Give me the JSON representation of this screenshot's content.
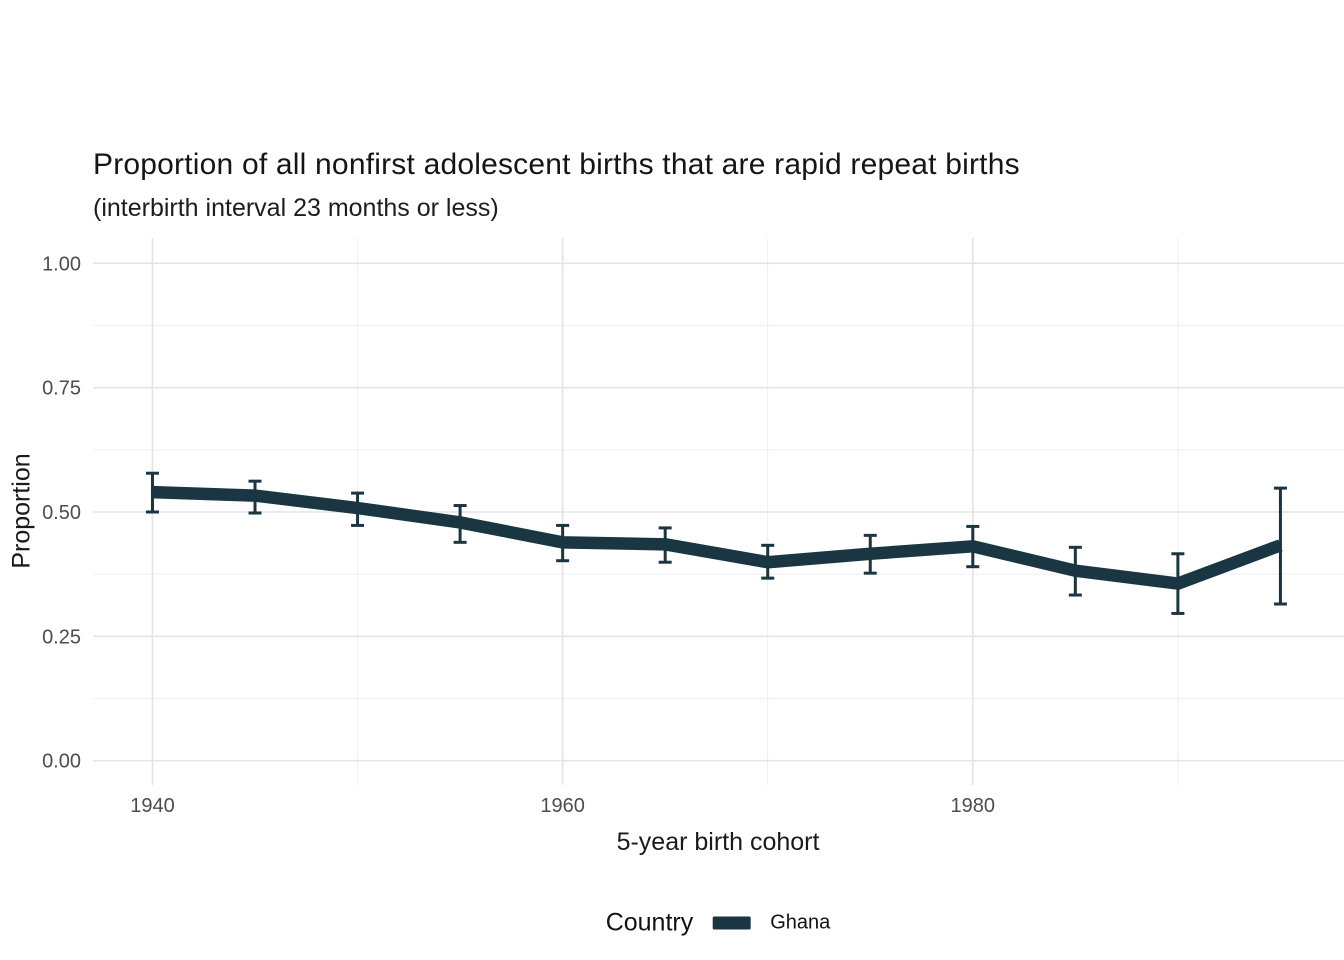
{
  "chart_data": {
    "type": "line",
    "title": "Proportion of all nonfirst adolescent births that are rapid repeat births",
    "subtitle": "(interbirth interval 23 months or less)",
    "xlabel": "5-year birth cohort",
    "ylabel": "Proportion",
    "grid": true,
    "legend": {
      "title": "Country",
      "position": "bottom",
      "items": [
        "Ghana"
      ]
    },
    "x_axis": {
      "ticks": [
        1940,
        1960,
        1980
      ],
      "tick_labels": [
        "1940",
        "1960",
        "1980"
      ],
      "minor_ticks": [
        1950,
        1970,
        1990
      ],
      "range": [
        1937.1,
        1998.1
      ]
    },
    "y_axis": {
      "ticks": [
        0,
        0.25,
        0.5,
        0.75,
        1
      ],
      "tick_labels": [
        "0.00",
        "0.25",
        "0.50",
        "0.75",
        "1.00"
      ],
      "minor_ticks": [
        0.125,
        0.375,
        0.625,
        0.875
      ],
      "range": [
        -0.049,
        1.051
      ]
    },
    "series": [
      {
        "name": "Ghana",
        "color": "#1a3642",
        "x": [
          1940,
          1945,
          1950,
          1955,
          1960,
          1965,
          1970,
          1975,
          1980,
          1985,
          1990,
          1995
        ],
        "y": [
          0.54,
          0.533,
          0.508,
          0.479,
          0.439,
          0.435,
          0.399,
          0.416,
          0.431,
          0.382,
          0.356,
          0.433
        ],
        "ci_low": [
          0.5,
          0.498,
          0.473,
          0.439,
          0.402,
          0.399,
          0.367,
          0.377,
          0.39,
          0.333,
          0.296,
          0.315
        ],
        "ci_high": [
          0.578,
          0.562,
          0.538,
          0.513,
          0.473,
          0.468,
          0.433,
          0.453,
          0.471,
          0.429,
          0.416,
          0.548
        ]
      }
    ],
    "colors": {
      "line": "#1a3642",
      "grid_major": "#e4e4e4",
      "grid_minor": "#efefef",
      "axis_text": "#4d4d4d",
      "title_text": "#151515"
    }
  }
}
